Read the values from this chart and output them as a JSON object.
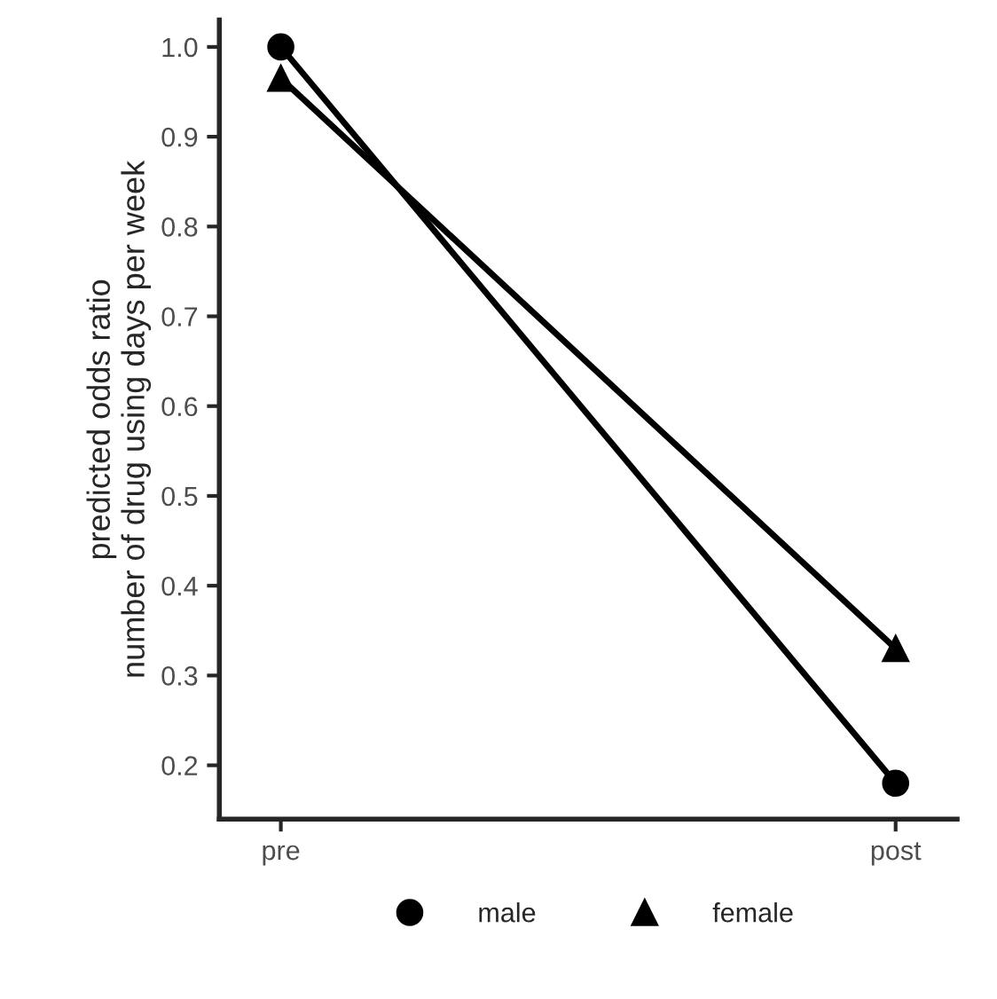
{
  "chart_data": {
    "type": "line",
    "ylabel": "predicted odds ratio\nnumber of drug using days per week",
    "categories": [
      "pre",
      "post"
    ],
    "series": [
      {
        "name": "male",
        "color": "#000000",
        "values": [
          1.0,
          0.18
        ],
        "marker": "circle"
      },
      {
        "name": "female",
        "color": "#000000",
        "values": [
          0.965,
          0.33
        ],
        "marker": "triangle"
      }
    ],
    "ylim": [
      0.14,
      1.03
    ],
    "yticks": [
      0.2,
      0.3,
      0.4,
      0.5,
      0.6,
      0.7,
      0.8,
      0.9,
      {
        "value": 1,
        "label": "1.0"
      }
    ],
    "grid": false,
    "legend": "bottom",
    "line_style": "solid"
  }
}
